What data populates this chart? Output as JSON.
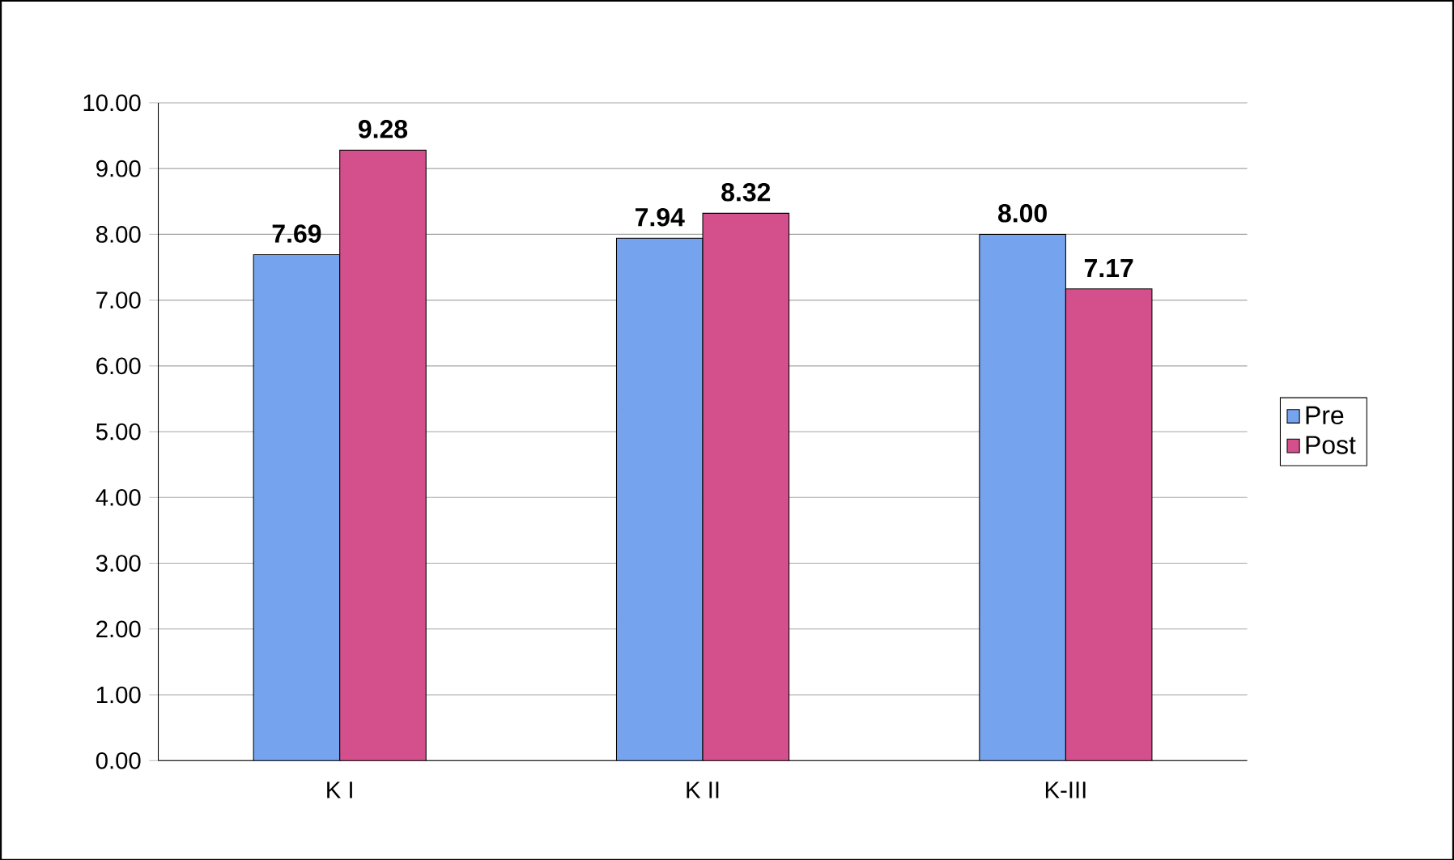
{
  "chart_data": {
    "type": "bar",
    "categories": [
      "K I",
      "K II",
      "K-III"
    ],
    "series": [
      {
        "name": "Pre",
        "color": "#76a3ee",
        "values": [
          7.69,
          7.94,
          8.0
        ],
        "value_labels": [
          "7.69",
          "7.94",
          "8.00"
        ]
      },
      {
        "name": "Post",
        "color": "#d4508c",
        "values": [
          9.28,
          8.32,
          7.17
        ],
        "value_labels": [
          "9.28",
          "8.32",
          "7.17"
        ]
      }
    ],
    "ylim": [
      0,
      10
    ],
    "yticks": [
      {
        "value": 0,
        "label": "0.00"
      },
      {
        "value": 1,
        "label": "1.00"
      },
      {
        "value": 2,
        "label": "2.00"
      },
      {
        "value": 3,
        "label": "3.00"
      },
      {
        "value": 4,
        "label": "4.00"
      },
      {
        "value": 5,
        "label": "5.00"
      },
      {
        "value": 6,
        "label": "6.00"
      },
      {
        "value": 7,
        "label": "7.00"
      },
      {
        "value": 8,
        "label": "8.00"
      },
      {
        "value": 9,
        "label": "9.00"
      },
      {
        "value": 10,
        "label": "10.00"
      }
    ],
    "grid": "y",
    "legend": "right"
  }
}
